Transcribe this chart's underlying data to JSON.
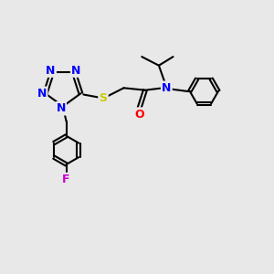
{
  "bg_color": "#e8e8e8",
  "bond_color": "#000000",
  "N_color": "#0000ff",
  "S_color": "#cccc00",
  "O_color": "#ff0000",
  "F_color": "#cc00cc",
  "line_width": 1.5,
  "font_size": 9.0,
  "fig_width": 3.0,
  "fig_height": 3.0,
  "dpi": 100,
  "xlim": [
    0,
    10
  ],
  "ylim": [
    0,
    10
  ]
}
